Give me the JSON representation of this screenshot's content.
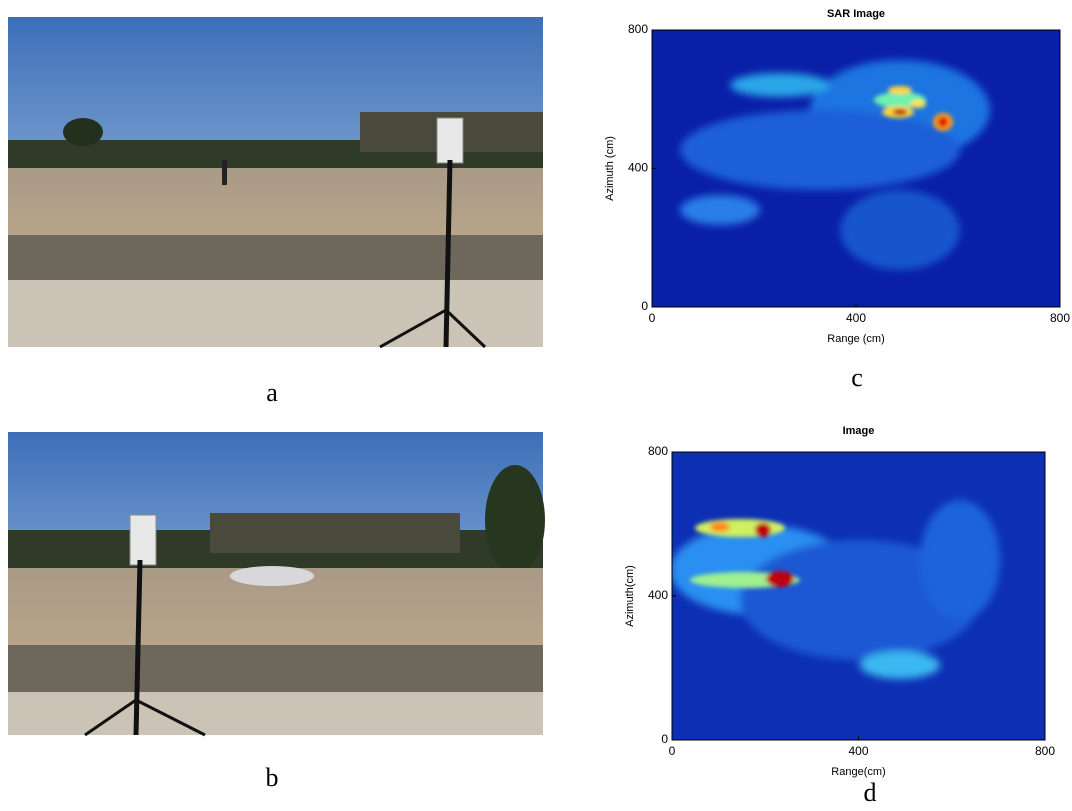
{
  "panels": [
    {
      "label": "a"
    },
    {
      "label": "b"
    },
    {
      "label": "c",
      "title": "SAR Image",
      "x_label": "Range (cm)",
      "y_label": "Azimuth (cm)",
      "xlim": [
        0,
        800
      ],
      "ylim": [
        0,
        800
      ],
      "xticks": [
        0,
        400,
        800
      ],
      "yticks": [
        0,
        400,
        800
      ]
    },
    {
      "label": "d",
      "title": "Image",
      "x_label": "Range(cm)",
      "y_label": "Azimuth(cm)",
      "xlim": [
        0,
        800
      ],
      "ylim": [
        0,
        800
      ],
      "xticks": [
        0,
        400,
        800
      ],
      "yticks": [
        0,
        400,
        800
      ]
    }
  ]
}
